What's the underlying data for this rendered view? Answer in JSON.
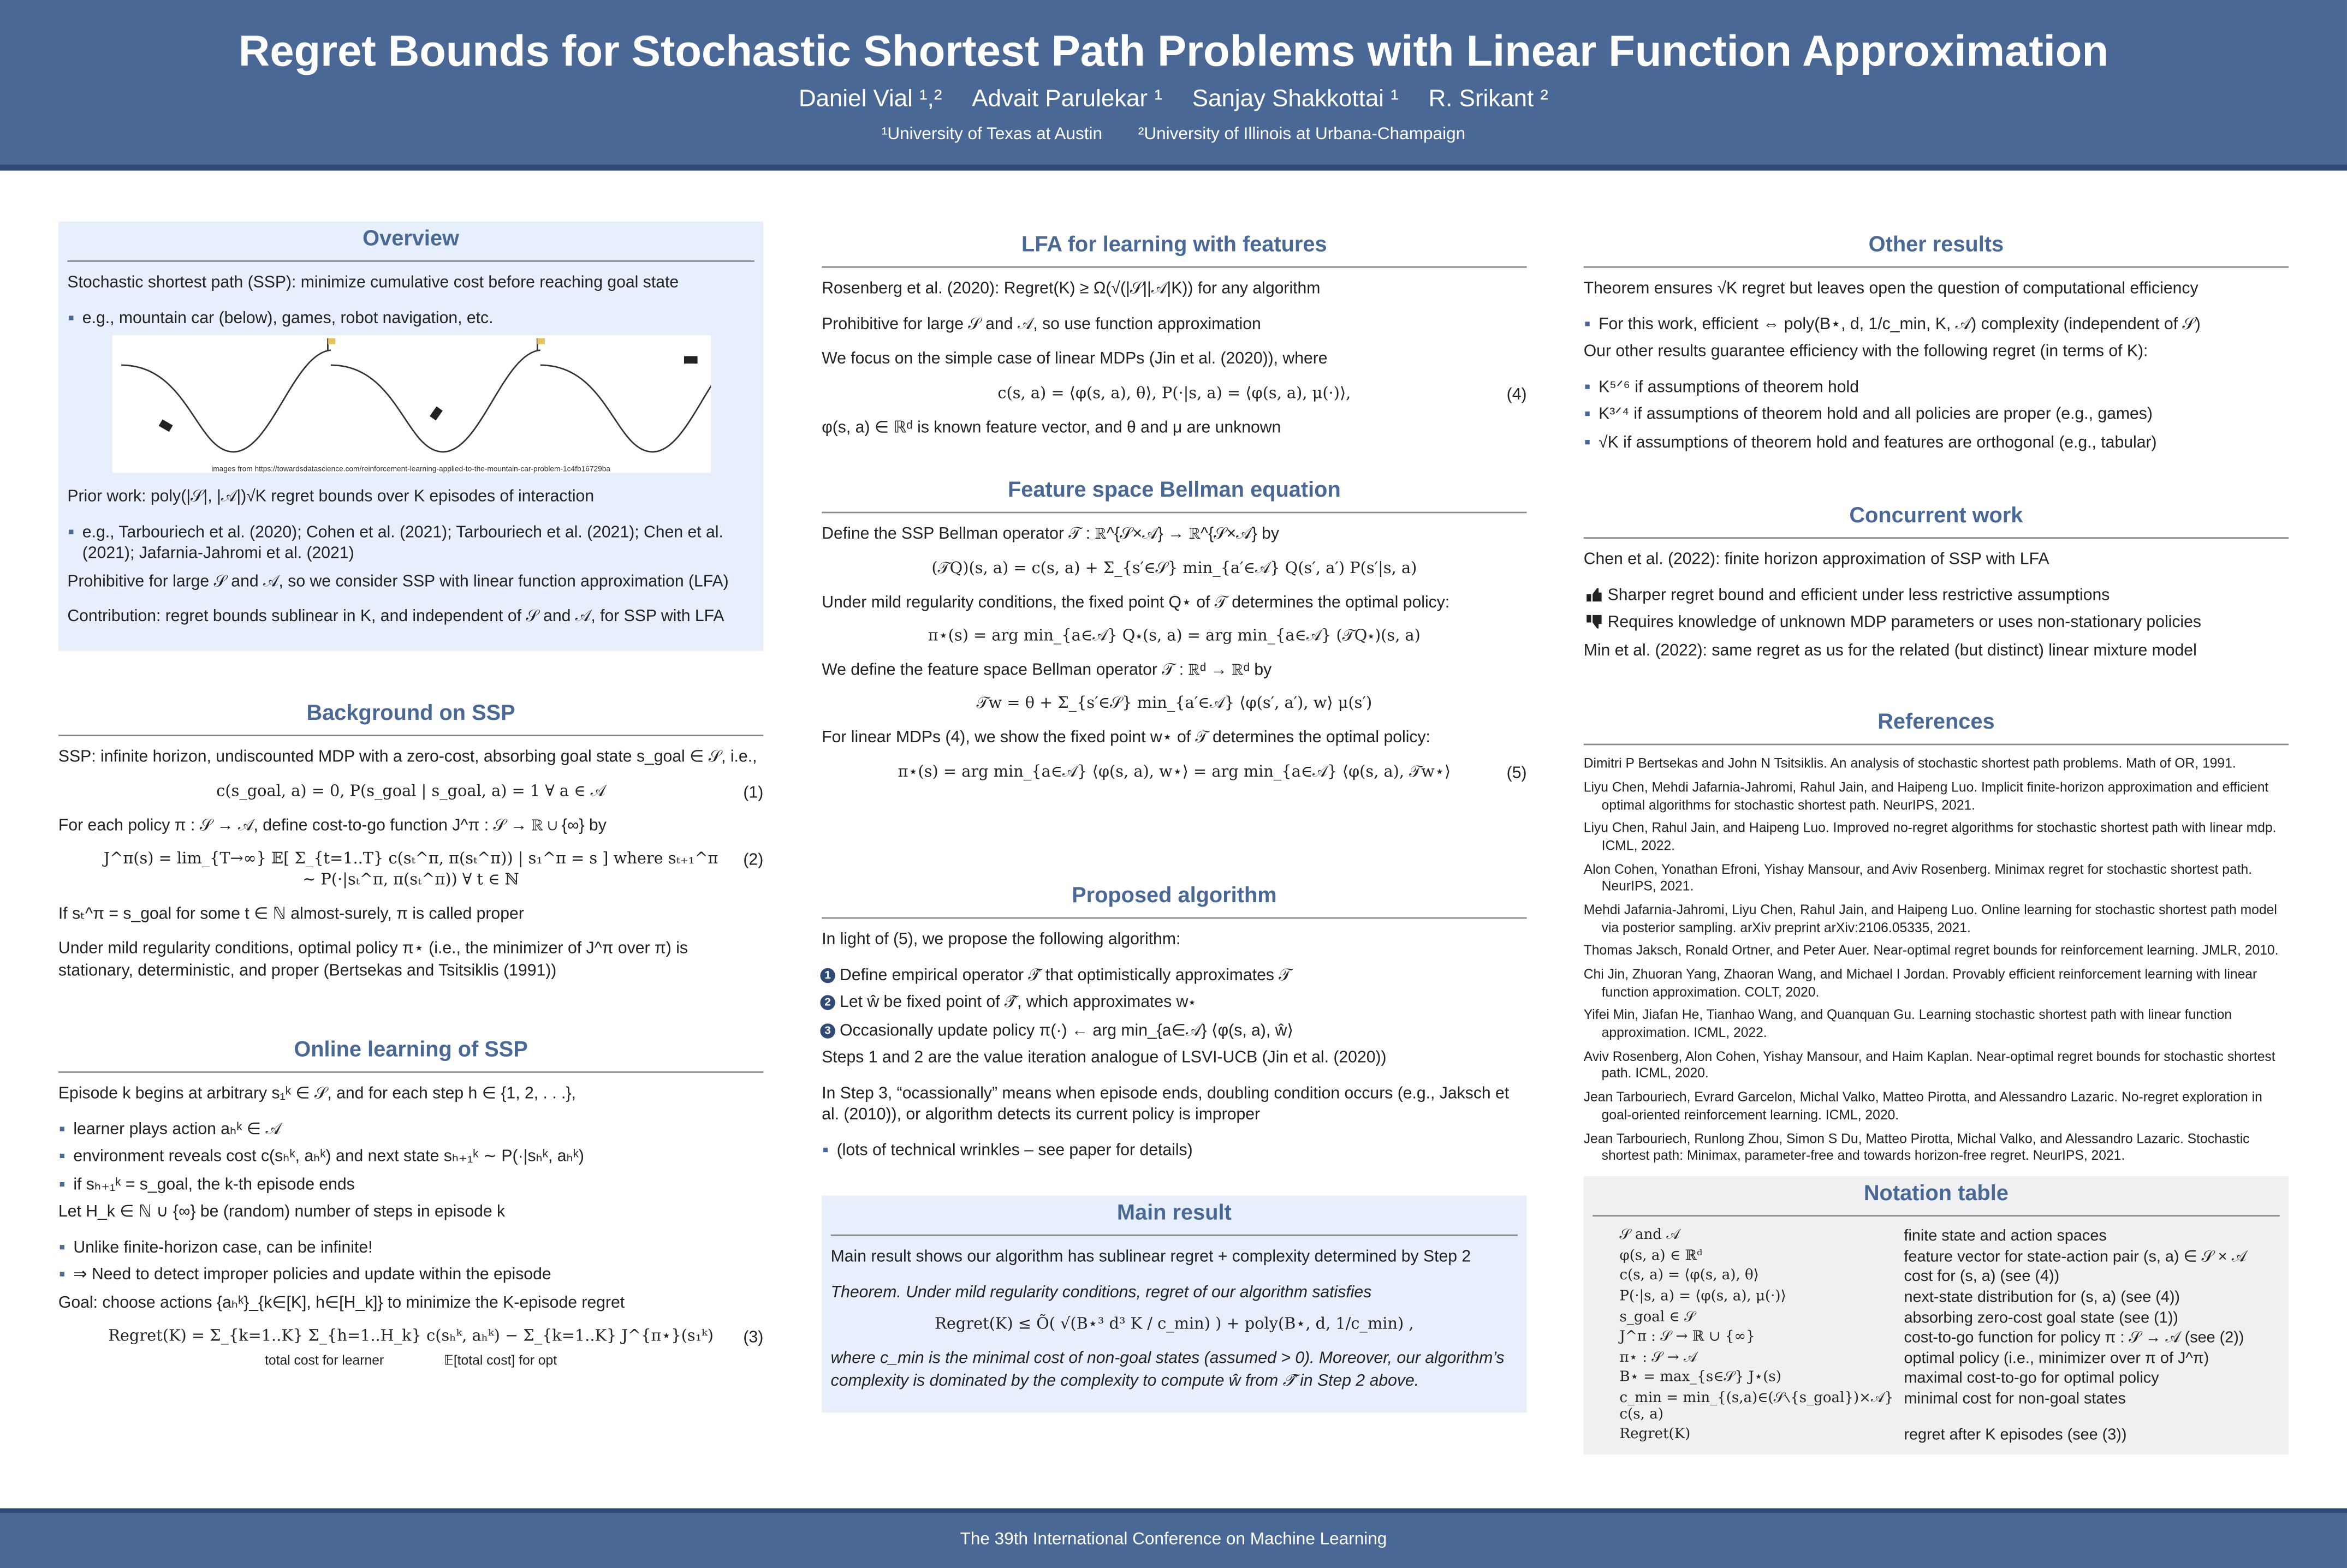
{
  "header": {
    "title": "Regret Bounds for Stochastic Shortest Path Problems with Linear Function Approximation",
    "authors": [
      "Daniel Vial ¹,²",
      "Advait Parulekar ¹",
      "Sanjay Shakkottai ¹",
      "R. Srikant ²"
    ],
    "affiliations": [
      "¹University of Texas at Austin",
      "²University of Illinois at Urbana-Champaign"
    ]
  },
  "columns": [
    {
      "sections": [
        {
          "title": "Overview",
          "style": "box",
          "items": [
            {
              "kind": "p",
              "text": "Stochastic shortest path (SSP): minimize cumulative cost before reaching goal state"
            },
            {
              "kind": "bullet",
              "text": "e.g., mountain car (below), games, robot navigation, etc."
            },
            {
              "kind": "figure",
              "text": "images from https://towardsdatascience.com/reinforcement-learning-applied-to-the-mountain-car-problem-1c4fb16729ba"
            },
            {
              "kind": "p",
              "text": "Prior work: poly(|𝒮|, |𝒜|)√K regret bounds over K episodes of interaction"
            },
            {
              "kind": "bullet",
              "text": "e.g., Tarbouriech et al. (2020); Cohen et al. (2021); Tarbouriech et al. (2021); Chen et al. (2021); Jafarnia-Jahromi et al. (2021)"
            },
            {
              "kind": "p",
              "text": "Prohibitive for large 𝒮 and 𝒜, so we consider SSP with linear function approximation (LFA)"
            },
            {
              "kind": "p",
              "text": "Contribution: regret bounds sublinear in K, and independent of 𝒮 and 𝒜, for SSP with LFA"
            }
          ]
        },
        {
          "title": "Background on SSP",
          "style": "plain",
          "items": [
            {
              "kind": "p",
              "text": "SSP: infinite horizon, undiscounted MDP with a zero-cost, absorbing goal state s_goal ∈ 𝒮, i.e.,"
            },
            {
              "kind": "eq",
              "text": "c(s_goal, a) = 0,    P(s_goal | s_goal, a) = 1    ∀ a ∈ 𝒜",
              "tag": "(1)"
            },
            {
              "kind": "p",
              "text": "For each policy π : 𝒮 → 𝒜, define cost-to-go function J^π : 𝒮 → ℝ ∪ {∞} by"
            },
            {
              "kind": "eq",
              "text": "J^π(s) = lim_{T→∞} 𝔼[ Σ_{t=1..T} c(sₜ^π, π(sₜ^π)) | s₁^π = s ]   where   sₜ₊₁^π ∼ P(·|sₜ^π, π(sₜ^π)) ∀ t ∈ ℕ",
              "tag": "(2)"
            },
            {
              "kind": "p",
              "text": "If sₜ^π = s_goal for some t ∈ ℕ almost-surely, π is called proper"
            },
            {
              "kind": "p",
              "text": "Under mild regularity conditions, optimal policy π⋆ (i.e., the minimizer of J^π over π) is stationary, deterministic, and proper (Bertsekas and Tsitsiklis (1991))"
            }
          ]
        },
        {
          "title": "Online learning of SSP",
          "style": "plain",
          "items": [
            {
              "kind": "p",
              "text": "Episode k begins at arbitrary s₁ᵏ ∈ 𝒮, and for each step h ∈ {1, 2, . . .},"
            },
            {
              "kind": "bullet",
              "text": "learner plays action aₕᵏ ∈ 𝒜"
            },
            {
              "kind": "bullet",
              "text": "environment reveals cost c(sₕᵏ, aₕᵏ) and next state sₕ₊₁ᵏ ∼ P(·|sₕᵏ, aₕᵏ)"
            },
            {
              "kind": "bullet",
              "text": "if sₕ₊₁ᵏ = s_goal, the k-th episode ends"
            },
            {
              "kind": "p",
              "text": "Let H_k ∈ ℕ ∪ {∞} be (random) number of steps in episode k"
            },
            {
              "kind": "bullet",
              "text": "Unlike finite-horizon case, can be infinite!"
            },
            {
              "kind": "bullet",
              "text": "⇒ Need to detect improper policies and update within the episode"
            },
            {
              "kind": "p",
              "text": "Goal: choose actions {aₕᵏ}_{k∈[K], h∈[H_k]} to minimize the K-episode regret"
            },
            {
              "kind": "eq",
              "text": "Regret(K) = Σ_{k=1..K} Σ_{h=1..H_k} c(sₕᵏ, aₕᵏ) − Σ_{k=1..K} J^{π⋆}(s₁ᵏ)",
              "tag": "(3)",
              "notes": [
                "total cost for learner",
                "𝔼[total cost] for opt"
              ]
            }
          ]
        }
      ]
    },
    {
      "sections": [
        {
          "title": "LFA for learning with features",
          "style": "plain",
          "items": [
            {
              "kind": "p",
              "text": "Rosenberg et al. (2020): Regret(K) ≥ Ω(√(|𝒮||𝒜|K)) for any algorithm"
            },
            {
              "kind": "p",
              "text": "Prohibitive for large 𝒮 and 𝒜, so use function approximation"
            },
            {
              "kind": "p",
              "text": "We focus on the simple case of linear MDPs (Jin et al. (2020)), where"
            },
            {
              "kind": "eq",
              "text": "c(s, a) = ⟨φ(s, a), θ⟩,    P(·|s, a) = ⟨φ(s, a), μ(·)⟩,",
              "tag": "(4)"
            },
            {
              "kind": "p",
              "text": "φ(s, a) ∈ ℝᵈ is known feature vector, and θ and μ are unknown"
            }
          ]
        },
        {
          "title": "Feature space Bellman equation",
          "style": "plain",
          "items": [
            {
              "kind": "p",
              "text": "Define the SSP Bellman operator 𝒯 : ℝ^{𝒮×𝒜} → ℝ^{𝒮×𝒜} by"
            },
            {
              "kind": "eq",
              "text": "(𝒯Q)(s, a) = c(s, a) + Σ_{s′∈𝒮} min_{a′∈𝒜} Q(s′, a′) P(s′|s, a)"
            },
            {
              "kind": "p",
              "text": "Under mild regularity conditions, the fixed point Q⋆ of 𝒯 determines the optimal policy:"
            },
            {
              "kind": "eq",
              "text": "π⋆(s) = arg min_{a∈𝒜} Q⋆(s, a) = arg min_{a∈𝒜} (𝒯Q⋆)(s, a)"
            },
            {
              "kind": "p",
              "text": "We define the feature space Bellman operator 𝒯 : ℝᵈ → ℝᵈ by"
            },
            {
              "kind": "eq",
              "text": "𝒯w = θ + Σ_{s′∈𝒮} min_{a′∈𝒜} ⟨φ(s′, a′), w⟩ μ(s′)"
            },
            {
              "kind": "p",
              "text": "For linear MDPs (4), we show the fixed point w⋆ of 𝒯 determines the optimal policy:"
            },
            {
              "kind": "eq",
              "text": "π⋆(s) = arg min_{a∈𝒜} ⟨φ(s, a), w⋆⟩ = arg min_{a∈𝒜} ⟨φ(s, a), 𝒯w⋆⟩",
              "tag": "(5)"
            }
          ]
        },
        {
          "title": "Proposed algorithm",
          "style": "plain",
          "items": [
            {
              "kind": "p",
              "text": "In light of (5), we propose the following algorithm:"
            },
            {
              "kind": "num",
              "marker": "1",
              "text": "Define empirical operator 𝒯̂ that optimistically approximates 𝒯"
            },
            {
              "kind": "num",
              "marker": "2",
              "text": "Let ŵ be fixed point of 𝒯̂, which approximates w⋆"
            },
            {
              "kind": "num",
              "marker": "3",
              "text": "Occasionally update policy π(·) ← arg min_{a∈𝒜} ⟨φ(s, a), ŵ⟩"
            },
            {
              "kind": "p",
              "text": "Steps 1 and 2 are the value iteration analogue of LSVI-UCB (Jin et al. (2020))"
            },
            {
              "kind": "p",
              "text": "In Step 3, “ocassionally” means when episode ends, doubling condition occurs (e.g., Jaksch et al. (2010)), or algorithm detects its current policy is improper"
            },
            {
              "kind": "bullet",
              "text": "(lots of technical wrinkles – see paper for details)"
            }
          ]
        },
        {
          "title": "Main result",
          "style": "box",
          "items": [
            {
              "kind": "p",
              "text": "Main result shows our algorithm has sublinear regret + complexity determined by Step 2"
            },
            {
              "kind": "it",
              "text": "Theorem. Under mild regularity conditions, regret of our algorithm satisfies"
            },
            {
              "kind": "eq",
              "text": "Regret(K) ≤ Õ( √(B⋆³ d³ K / c_min) ) + poly(B⋆, d, 1/c_min) ,"
            },
            {
              "kind": "it",
              "text": "where c_min is the minimal cost of non-goal states (assumed > 0). Moreover, our algorithm’s complexity is dominated by the complexity to compute ŵ from 𝒯̂ in Step 2 above."
            }
          ]
        }
      ]
    },
    {
      "sections": [
        {
          "title": "Other results",
          "style": "plain",
          "items": [
            {
              "kind": "p",
              "text": "Theorem ensures √K regret but leaves open the question of computational efficiency"
            },
            {
              "kind": "bullet",
              "text": "For this work, efficient ⇔ poly(B⋆, d, 1/c_min, K, 𝒜) complexity (independent of 𝒮)"
            },
            {
              "kind": "p",
              "text": "Our other results guarantee efficiency with the following regret (in terms of K):"
            },
            {
              "kind": "bullet",
              "text": "K⁵ᐟ⁶ if assumptions of theorem hold"
            },
            {
              "kind": "bullet",
              "text": "K³ᐟ⁴ if assumptions of theorem hold and all policies are proper (e.g., games)"
            },
            {
              "kind": "bullet",
              "text": "√K if assumptions of theorem hold and features are orthogonal (e.g., tabular)"
            }
          ]
        },
        {
          "title": "Concurrent work",
          "style": "plain",
          "items": [
            {
              "kind": "p",
              "text": "Chen et al. (2022): finite horizon approximation of SSP with LFA"
            },
            {
              "kind": "up",
              "text": "Sharper regret bound and efficient under less restrictive assumptions"
            },
            {
              "kind": "down",
              "text": "Requires knowledge of unknown MDP parameters or uses non-stationary policies"
            },
            {
              "kind": "p",
              "text": "Min et al. (2022): same regret as us for the related (but distinct) linear mixture model"
            }
          ]
        },
        {
          "title": "References",
          "style": "plain",
          "items": [
            {
              "kind": "ref",
              "text": "Dimitri P Bertsekas and John N Tsitsiklis. An analysis of stochastic shortest path problems. Math of OR, 1991."
            },
            {
              "kind": "ref",
              "text": "Liyu Chen, Mehdi Jafarnia-Jahromi, Rahul Jain, and Haipeng Luo. Implicit finite-horizon approximation and efficient optimal algorithms for stochastic shortest path. NeurIPS, 2021."
            },
            {
              "kind": "ref",
              "text": "Liyu Chen, Rahul Jain, and Haipeng Luo. Improved no-regret algorithms for stochastic shortest path with linear mdp. ICML, 2022."
            },
            {
              "kind": "ref",
              "text": "Alon Cohen, Yonathan Efroni, Yishay Mansour, and Aviv Rosenberg. Minimax regret for stochastic shortest path. NeurIPS, 2021."
            },
            {
              "kind": "ref",
              "text": "Mehdi Jafarnia-Jahromi, Liyu Chen, Rahul Jain, and Haipeng Luo. Online learning for stochastic shortest path model via posterior sampling. arXiv preprint arXiv:2106.05335, 2021."
            },
            {
              "kind": "ref",
              "text": "Thomas Jaksch, Ronald Ortner, and Peter Auer. Near-optimal regret bounds for reinforcement learning. JMLR, 2010."
            },
            {
              "kind": "ref",
              "text": "Chi Jin, Zhuoran Yang, Zhaoran Wang, and Michael I Jordan. Provably efficient reinforcement learning with linear function approximation. COLT, 2020."
            },
            {
              "kind": "ref",
              "text": "Yifei Min, Jiafan He, Tianhao Wang, and Quanquan Gu. Learning stochastic shortest path with linear function approximation. ICML, 2022."
            },
            {
              "kind": "ref",
              "text": "Aviv Rosenberg, Alon Cohen, Yishay Mansour, and Haim Kaplan. Near-optimal regret bounds for stochastic shortest path. ICML, 2020."
            },
            {
              "kind": "ref",
              "text": "Jean Tarbouriech, Evrard Garcelon, Michal Valko, Matteo Pirotta, and Alessandro Lazaric. No-regret exploration in goal-oriented reinforcement learning. ICML, 2020."
            },
            {
              "kind": "ref",
              "text": "Jean Tarbouriech, Runlong Zhou, Simon S Du, Matteo Pirotta, Michal Valko, and Alessandro Lazaric. Stochastic shortest path: Minimax, parameter-free and towards horizon-free regret. NeurIPS, 2021."
            }
          ]
        },
        {
          "title": "Notation table",
          "style": "gray",
          "items": [
            {
              "kind": "row",
              "cells": [
                "𝒮 and 𝒜",
                "finite state and action spaces"
              ]
            },
            {
              "kind": "row",
              "cells": [
                "φ(s, a) ∈ ℝᵈ",
                "feature vector for state-action pair (s, a) ∈ 𝒮 × 𝒜"
              ]
            },
            {
              "kind": "row",
              "cells": [
                "c(s, a) = ⟨φ(s, a), θ⟩",
                "cost for (s, a) (see (4))"
              ]
            },
            {
              "kind": "row",
              "cells": [
                "P(·|s, a) = ⟨φ(s, a), μ(·)⟩",
                "next-state distribution for (s, a) (see (4))"
              ]
            },
            {
              "kind": "row",
              "cells": [
                "s_goal ∈ 𝒮",
                "absorbing zero-cost goal state (see (1))"
              ]
            },
            {
              "kind": "row",
              "cells": [
                "J^π : 𝒮 → ℝ ∪ {∞}",
                "cost-to-go function for policy π : 𝒮 → 𝒜 (see (2))"
              ]
            },
            {
              "kind": "row",
              "cells": [
                "π⋆ : 𝒮 → 𝒜",
                "optimal policy (i.e., minimizer over π of J^π)"
              ]
            },
            {
              "kind": "row",
              "cells": [
                "B⋆ = max_{s∈𝒮} J⋆(s)",
                "maximal cost-to-go for optimal policy"
              ]
            },
            {
              "kind": "row",
              "cells": [
                "c_min = min_{(s,a)∈(𝒮∖{s_goal})×𝒜} c(s, a)",
                "minimal cost for non-goal states"
              ]
            },
            {
              "kind": "row",
              "cells": [
                "Regret(K)",
                "regret after K episodes (see (3))"
              ]
            }
          ]
        }
      ]
    }
  ],
  "footer": {
    "text": "The 39th International Conference on Machine Learning"
  }
}
